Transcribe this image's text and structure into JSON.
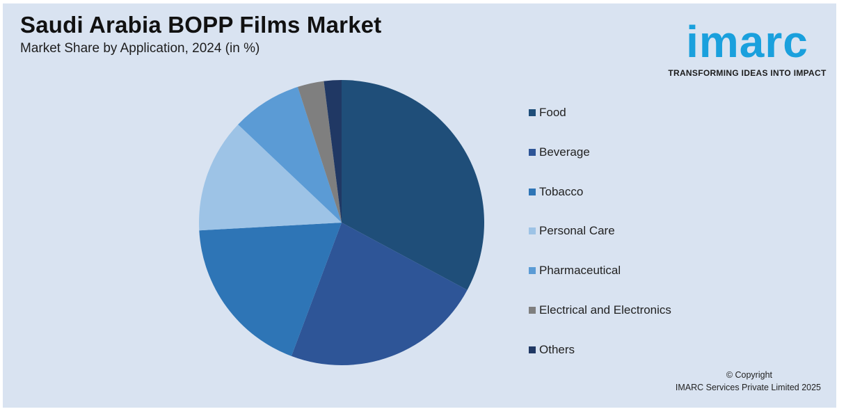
{
  "header": {
    "title": "Saudi Arabia BOPP Films Market",
    "subtitle": "Market Share by Application, 2024 (in %)"
  },
  "logo": {
    "word": "imarc",
    "tagline": "TRANSFORMING IDEAS INTO IMPACT",
    "color": "#1aa0dd"
  },
  "chart_data": {
    "type": "pie",
    "categories": [
      "Food",
      "Beverage",
      "Tobacco",
      "Personal Care",
      "Pharmaceutical",
      "Electrical and Electronics",
      "Others"
    ],
    "values": [
      33,
      23,
      18.5,
      13,
      8,
      3,
      2
    ],
    "colors": [
      "#1f4e79",
      "#2e5597",
      "#2e75b6",
      "#9dc3e6",
      "#5b9bd5",
      "#7f7f7f",
      "#203864"
    ],
    "legend_position": "right",
    "start_angle_deg": 0,
    "direction": "clockwise"
  },
  "footer": {
    "copyright_line1": "© Copyright",
    "copyright_line2": "IMARC Services Private Limited 2025"
  }
}
